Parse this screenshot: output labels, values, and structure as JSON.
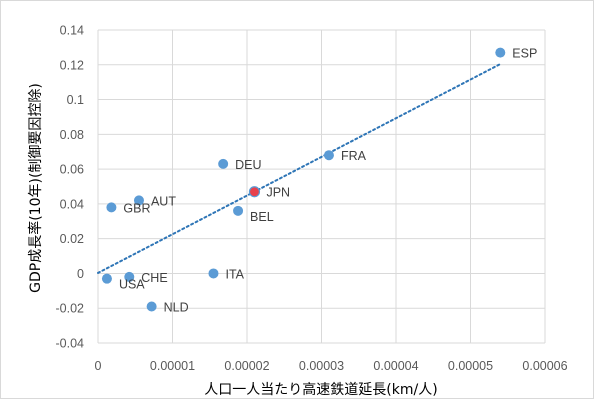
{
  "chart_data": {
    "type": "scatter",
    "xlabel": "人口一人当たり高速鉄道延長(km/人)",
    "ylabel": "GDP成長率(10年)(制御要因控除)",
    "xlim": [
      0,
      6e-05
    ],
    "ylim": [
      -0.04,
      0.14
    ],
    "x_ticks": [
      {
        "value": 0,
        "label": "0"
      },
      {
        "value": 1e-05,
        "label": "0.00001"
      },
      {
        "value": 2e-05,
        "label": "0.00002"
      },
      {
        "value": 3e-05,
        "label": "0.00003"
      },
      {
        "value": 4e-05,
        "label": "0.00004"
      },
      {
        "value": 5e-05,
        "label": "0.00005"
      },
      {
        "value": 6e-05,
        "label": "0.00006"
      }
    ],
    "y_ticks": [
      {
        "value": -0.04,
        "label": "-0.04"
      },
      {
        "value": -0.02,
        "label": "-0.02"
      },
      {
        "value": 0,
        "label": "0"
      },
      {
        "value": 0.02,
        "label": "0.02"
      },
      {
        "value": 0.04,
        "label": "0.04"
      },
      {
        "value": 0.06,
        "label": "0.06"
      },
      {
        "value": 0.08,
        "label": "0.08"
      },
      {
        "value": 0.1,
        "label": "0.1"
      },
      {
        "value": 0.12,
        "label": "0.12"
      },
      {
        "value": 0.14,
        "label": "0.14"
      }
    ],
    "grid": true,
    "points": [
      {
        "label": "ESP",
        "x": 5.4e-05,
        "y": 0.127,
        "color": "#5b9bd5",
        "label_side": "right"
      },
      {
        "label": "FRA",
        "x": 3.1e-05,
        "y": 0.068,
        "color": "#5b9bd5",
        "label_side": "right"
      },
      {
        "label": "DEU",
        "x": 1.68e-05,
        "y": 0.063,
        "color": "#5b9bd5",
        "label_side": "right"
      },
      {
        "label": "JPN",
        "x": 2.1e-05,
        "y": 0.047,
        "color": "#e8414c",
        "label_side": "right"
      },
      {
        "label": "BEL",
        "x": 1.88e-05,
        "y": 0.036,
        "color": "#5b9bd5",
        "label_side": "right-below"
      },
      {
        "label": "AUT",
        "x": 5.5e-06,
        "y": 0.042,
        "color": "#5b9bd5",
        "label_side": "right"
      },
      {
        "label": "GBR",
        "x": 1.8e-06,
        "y": 0.038,
        "color": "#5b9bd5",
        "label_side": "right"
      },
      {
        "label": "ITA",
        "x": 1.55e-05,
        "y": 0.0,
        "color": "#5b9bd5",
        "label_side": "right"
      },
      {
        "label": "CHE",
        "x": 4.2e-06,
        "y": -0.002,
        "color": "#5b9bd5",
        "label_side": "right"
      },
      {
        "label": "USA",
        "x": 1.2e-06,
        "y": -0.003,
        "color": "#5b9bd5",
        "label_side": "right-below"
      },
      {
        "label": "NLD",
        "x": 7.2e-06,
        "y": -0.019,
        "color": "#5b9bd5",
        "label_side": "right"
      }
    ],
    "trendline": {
      "type": "linear",
      "style": "dotted",
      "color": "#2e75b6",
      "x_range": [
        0,
        5.4e-05
      ]
    },
    "colors": {
      "point": "#5b9bd5",
      "highlight": "#e8414c",
      "trend": "#2e75b6",
      "grid": "#d9d9d9"
    }
  }
}
